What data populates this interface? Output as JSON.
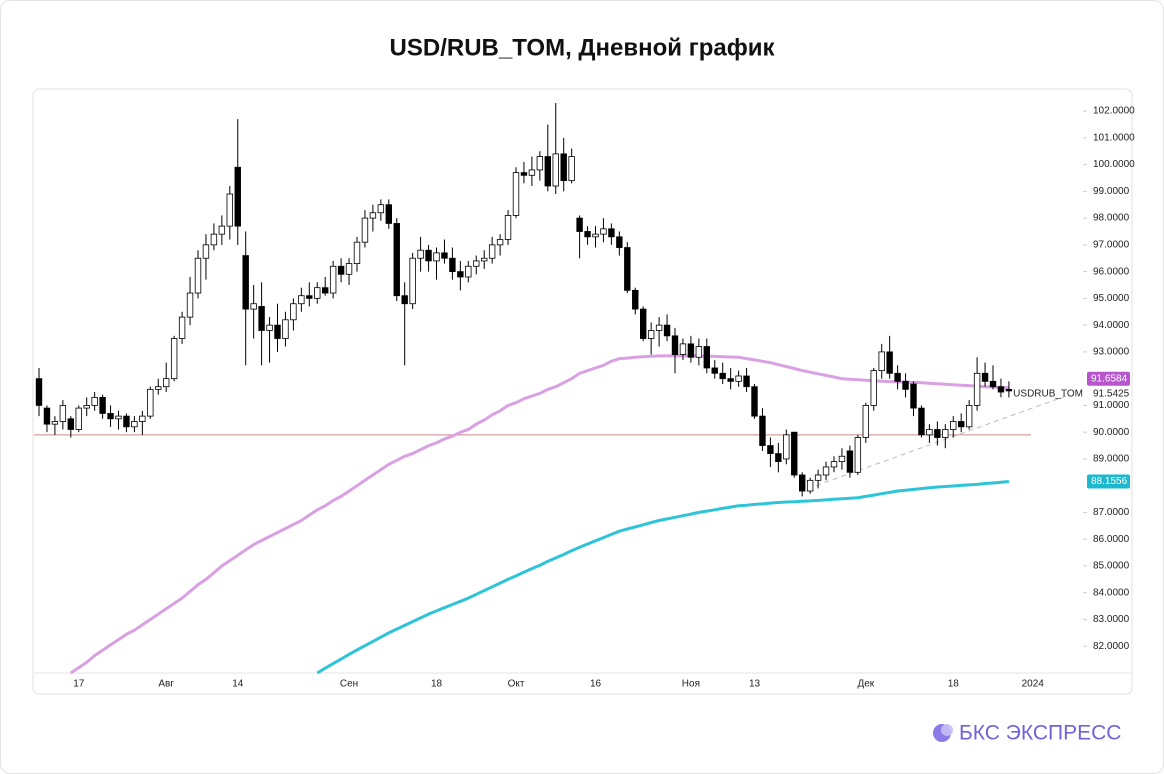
{
  "chart_data": {
    "type": "candlestick",
    "title": "USD/RUB_TOM, Дневной график",
    "categories": [
      null,
      null,
      null,
      null,
      null,
      "17",
      null,
      null,
      null,
      null,
      null,
      null,
      null,
      null,
      null,
      null,
      "Авг",
      null,
      null,
      null,
      null,
      null,
      null,
      null,
      null,
      "14",
      null,
      null,
      null,
      null,
      null,
      null,
      null,
      null,
      null,
      null,
      null,
      null,
      null,
      "Сен",
      null,
      null,
      null,
      null,
      null,
      null,
      null,
      null,
      null,
      null,
      "18",
      null,
      null,
      null,
      null,
      null,
      null,
      null,
      null,
      null,
      "Окт",
      null,
      null,
      null,
      null,
      null,
      null,
      null,
      null,
      null,
      "16",
      null,
      null,
      null,
      null,
      null,
      null,
      null,
      null,
      null,
      null,
      null,
      "Ноя",
      null,
      null,
      null,
      null,
      null,
      null,
      null,
      "13",
      null,
      null,
      null,
      null,
      null,
      null,
      null,
      null,
      null,
      null,
      null,
      null,
      null,
      "Дек",
      null,
      null,
      null,
      null,
      null,
      null,
      null,
      null,
      null,
      null,
      "18",
      null,
      null,
      null,
      null,
      null,
      null,
      null,
      null,
      null,
      "2024"
    ],
    "candles": {
      "name": "USDRUB_TOM",
      "up_color": "#ffffff",
      "down_color": "#000000",
      "border_color": "#000000",
      "open": [
        92.0,
        90.9,
        90.3,
        90.4,
        90.5,
        90.1,
        90.9,
        91.0,
        91.3,
        90.7,
        90.5,
        90.6,
        90.2,
        90.4,
        90.6,
        91.6,
        91.7,
        92.0,
        93.5,
        94.3,
        95.2,
        96.5,
        97.0,
        97.4,
        97.7,
        99.9,
        96.6,
        94.6,
        94.7,
        93.8,
        94.0,
        93.5,
        94.2,
        94.8,
        95.1,
        95.0,
        95.4,
        95.2,
        96.2,
        95.9,
        96.3,
        97.1,
        98.0,
        98.2,
        98.5,
        97.8,
        95.1,
        94.8,
        96.5,
        96.8,
        96.4,
        96.7,
        96.5,
        96.0,
        95.8,
        96.2,
        96.4,
        96.5,
        97.0,
        97.2,
        98.1,
        99.7,
        99.6,
        99.8,
        100.3,
        99.2,
        100.4,
        99.4,
        98.0,
        97.5,
        97.3,
        97.4,
        97.6,
        97.3,
        96.9,
        95.3,
        94.6,
        93.5,
        93.8,
        94.0,
        93.6,
        92.9,
        93.3,
        92.8,
        93.2,
        92.4,
        92.2,
        92.0,
        91.9,
        92.1,
        91.7,
        90.6,
        89.5,
        89.2,
        89.0,
        90.0,
        88.4,
        87.8,
        88.2,
        88.4,
        88.7,
        88.9,
        89.3,
        88.5,
        89.8,
        91.0,
        92.3,
        93.0,
        92.2,
        91.9,
        91.8,
        90.9,
        89.9,
        90.1,
        89.8,
        90.1,
        90.4,
        90.2,
        91.0,
        92.2,
        91.9,
        91.7,
        91.6,
        null,
        null,
        null
      ],
      "high": [
        92.4,
        91.0,
        90.6,
        91.2,
        90.6,
        91.0,
        91.3,
        91.5,
        91.4,
        91.0,
        90.8,
        90.7,
        90.6,
        90.8,
        91.7,
        92.0,
        92.6,
        93.6,
        94.5,
        95.8,
        96.8,
        97.4,
        97.8,
        98.1,
        99.2,
        101.7,
        97.5,
        95.5,
        95.6,
        94.3,
        94.8,
        94.5,
        95.0,
        95.4,
        95.6,
        95.6,
        95.8,
        96.4,
        96.5,
        96.5,
        97.3,
        98.3,
        98.5,
        98.7,
        98.7,
        98.0,
        95.6,
        96.7,
        97.3,
        97.0,
        96.9,
        97.2,
        96.9,
        96.4,
        96.4,
        96.6,
        96.8,
        97.3,
        97.4,
        98.3,
        99.9,
        100.1,
        100.3,
        100.5,
        101.5,
        102.3,
        101.0,
        100.6,
        98.1,
        97.7,
        97.7,
        98.0,
        97.8,
        97.5,
        97.1,
        95.4,
        94.7,
        94.1,
        94.3,
        94.4,
        93.9,
        93.5,
        93.6,
        93.5,
        93.5,
        92.7,
        92.6,
        92.4,
        92.3,
        92.4,
        91.8,
        90.9,
        89.8,
        89.6,
        90.1,
        90.0,
        88.5,
        88.3,
        88.6,
        88.9,
        89.1,
        89.4,
        89.5,
        89.9,
        91.1,
        92.4,
        93.3,
        93.6,
        92.5,
        92.2,
        91.9,
        91.0,
        90.3,
        90.4,
        90.3,
        90.6,
        90.7,
        91.2,
        92.8,
        92.6,
        92.5,
        92.0,
        91.9,
        null,
        null,
        null
      ],
      "low": [
        90.6,
        90.0,
        89.9,
        90.1,
        89.8,
        90.0,
        90.6,
        90.8,
        90.5,
        90.2,
        90.1,
        90.0,
        90.0,
        89.9,
        90.5,
        91.4,
        91.5,
        91.9,
        93.3,
        94.0,
        95.0,
        95.7,
        96.8,
        97.0,
        97.2,
        97.0,
        92.5,
        93.5,
        92.5,
        92.6,
        93.0,
        93.2,
        93.8,
        94.5,
        94.7,
        94.8,
        95.1,
        95.0,
        95.6,
        95.5,
        96.0,
        96.9,
        97.5,
        97.9,
        97.6,
        94.9,
        92.5,
        94.6,
        96.0,
        96.0,
        95.7,
        96.3,
        95.7,
        95.3,
        95.6,
        95.9,
        96.1,
        96.3,
        96.6,
        97.0,
        98.0,
        99.3,
        99.2,
        99.4,
        99.0,
        98.9,
        99.0,
        99.3,
        96.5,
        97.0,
        96.9,
        97.1,
        97.0,
        96.6,
        95.2,
        94.4,
        93.4,
        92.9,
        93.2,
        93.4,
        92.2,
        92.7,
        92.6,
        92.5,
        92.2,
        92.0,
        91.8,
        91.6,
        91.7,
        91.5,
        90.5,
        89.3,
        88.7,
        88.5,
        88.8,
        88.3,
        87.6,
        87.7,
        87.9,
        88.2,
        88.5,
        88.6,
        88.3,
        88.4,
        89.6,
        90.8,
        92.0,
        92.0,
        91.6,
        91.3,
        90.6,
        89.8,
        89.6,
        89.5,
        89.4,
        89.8,
        90.0,
        90.1,
        90.8,
        91.7,
        91.6,
        91.3,
        91.3,
        null,
        null,
        null
      ],
      "close": [
        91.0,
        90.3,
        90.4,
        91.0,
        90.1,
        90.9,
        91.0,
        91.3,
        90.7,
        90.5,
        90.6,
        90.2,
        90.4,
        90.6,
        91.6,
        91.7,
        92.0,
        93.5,
        94.3,
        95.2,
        96.5,
        97.0,
        97.4,
        97.7,
        98.9,
        97.7,
        94.6,
        94.8,
        93.8,
        94.0,
        93.5,
        94.2,
        94.8,
        95.1,
        95.0,
        95.4,
        95.2,
        96.2,
        95.9,
        96.3,
        97.1,
        98.0,
        98.2,
        98.5,
        97.8,
        95.1,
        94.8,
        96.5,
        96.8,
        96.4,
        96.7,
        96.5,
        96.0,
        95.8,
        96.2,
        96.4,
        96.5,
        97.0,
        97.2,
        98.1,
        99.7,
        99.6,
        99.8,
        100.3,
        99.2,
        100.4,
        99.4,
        100.3,
        97.5,
        97.3,
        97.4,
        97.6,
        97.3,
        96.9,
        95.3,
        94.6,
        93.5,
        93.8,
        94.0,
        93.6,
        92.9,
        93.3,
        92.8,
        93.2,
        92.4,
        92.2,
        92.0,
        91.9,
        92.1,
        91.7,
        90.6,
        89.5,
        89.2,
        88.9,
        89.9,
        88.4,
        87.8,
        88.2,
        88.4,
        88.7,
        88.9,
        89.1,
        88.5,
        89.8,
        91.0,
        92.3,
        93.0,
        92.2,
        91.9,
        91.6,
        90.9,
        89.9,
        90.1,
        89.8,
        90.1,
        90.4,
        90.2,
        91.0,
        92.2,
        91.9,
        91.7,
        91.5,
        91.5425,
        null,
        null,
        null
      ]
    },
    "lines": [
      {
        "color": "#d9a0e3",
        "label_color": "#b756cc",
        "values": [
          null,
          null,
          null,
          null,
          81.0,
          81.2,
          81.4,
          81.65,
          81.85,
          82.05,
          82.25,
          82.45,
          82.6,
          82.8,
          83.0,
          83.2,
          83.4,
          83.6,
          83.8,
          84.05,
          84.3,
          84.5,
          84.75,
          85.0,
          85.2,
          85.4,
          85.6,
          85.8,
          85.95,
          86.1,
          86.25,
          86.4,
          86.55,
          86.7,
          86.9,
          87.1,
          87.25,
          87.45,
          87.6,
          87.8,
          88.0,
          88.2,
          88.4,
          88.6,
          88.8,
          88.95,
          89.1,
          89.2,
          89.35,
          89.5,
          89.6,
          89.75,
          89.85,
          90.0,
          90.1,
          90.3,
          90.45,
          90.65,
          90.8,
          91.0,
          91.1,
          91.25,
          91.35,
          91.45,
          91.6,
          91.7,
          91.85,
          92.0,
          92.2,
          92.3,
          92.4,
          92.5,
          92.65,
          92.75,
          92.77,
          92.8,
          92.82,
          92.84,
          92.85,
          92.85,
          92.85,
          92.85,
          92.85,
          92.85,
          92.84,
          92.83,
          92.82,
          92.81,
          92.8,
          92.75,
          92.7,
          92.65,
          92.6,
          92.52,
          92.45,
          92.38,
          92.3,
          92.24,
          92.18,
          92.12,
          92.06,
          92.0,
          91.98,
          91.96,
          91.94,
          91.92,
          91.9,
          91.89,
          91.88,
          91.87,
          91.86,
          91.85,
          91.83,
          91.81,
          91.79,
          91.77,
          91.75,
          91.74,
          91.72,
          91.7,
          91.69,
          91.67,
          91.6584,
          null,
          null,
          null
        ]
      },
      {
        "color": "#2ec4d8",
        "label_color": "#1db8cc",
        "values": [
          null,
          null,
          null,
          null,
          null,
          null,
          null,
          null,
          null,
          null,
          null,
          null,
          null,
          null,
          null,
          null,
          null,
          null,
          null,
          null,
          null,
          null,
          null,
          null,
          null,
          null,
          null,
          null,
          null,
          null,
          null,
          null,
          null,
          null,
          null,
          81.0,
          81.18,
          81.35,
          81.52,
          81.7,
          81.86,
          82.02,
          82.18,
          82.34,
          82.5,
          82.64,
          82.78,
          82.92,
          83.06,
          83.2,
          83.32,
          83.44,
          83.56,
          83.68,
          83.8,
          83.94,
          84.08,
          84.22,
          84.36,
          84.5,
          84.63,
          84.77,
          84.9,
          85.03,
          85.17,
          85.3,
          85.43,
          85.57,
          85.7,
          85.82,
          85.94,
          86.06,
          86.18,
          86.3,
          86.38,
          86.46,
          86.54,
          86.62,
          86.7,
          86.76,
          86.82,
          86.88,
          86.94,
          87.0,
          87.05,
          87.1,
          87.15,
          87.2,
          87.25,
          87.27,
          87.3,
          87.32,
          87.35,
          87.37,
          87.39,
          87.4,
          87.42,
          87.43,
          87.45,
          87.47,
          87.49,
          87.51,
          87.53,
          87.55,
          87.6,
          87.65,
          87.7,
          87.75,
          87.8,
          87.83,
          87.86,
          87.89,
          87.92,
          87.95,
          87.97,
          87.99,
          88.01,
          88.03,
          88.05,
          88.08,
          88.1,
          88.13,
          88.1556,
          null,
          null,
          null
        ]
      }
    ],
    "reference_line": {
      "value": 89.9,
      "color": "#c98a8a"
    },
    "trend_line": {
      "start": 88.0,
      "end": 91.35,
      "color": "#bbbbbb"
    },
    "ylim": [
      81.0,
      102.75
    ],
    "yticks": [
      {
        "value": 102,
        "label": "102.0000"
      },
      {
        "value": 101,
        "label": "101.0000"
      },
      {
        "value": 100,
        "label": "100.0000"
      },
      {
        "value": 99,
        "label": "99.0000"
      },
      {
        "value": 98,
        "label": "98.0000"
      },
      {
        "value": 97,
        "label": "97.0000"
      },
      {
        "value": 96,
        "label": "96.0000"
      },
      {
        "value": 95,
        "label": "95.0000"
      },
      {
        "value": 94,
        "label": "94.0000"
      },
      {
        "value": 93,
        "label": "93.0000"
      },
      {
        "value": 91,
        "label": "91.0000"
      },
      {
        "value": 90,
        "label": "90.0000"
      },
      {
        "value": 89,
        "label": "89.0000"
      },
      {
        "value": 87,
        "label": "87.0000"
      },
      {
        "value": 86,
        "label": "86.0000"
      },
      {
        "value": 85,
        "label": "85.0000"
      },
      {
        "value": 84,
        "label": "84.0000"
      },
      {
        "value": 83,
        "label": "83.0000"
      },
      {
        "value": 82,
        "label": "82.0000"
      }
    ],
    "grid": false
  },
  "brand": "БКС ЭКСПРЕСС"
}
